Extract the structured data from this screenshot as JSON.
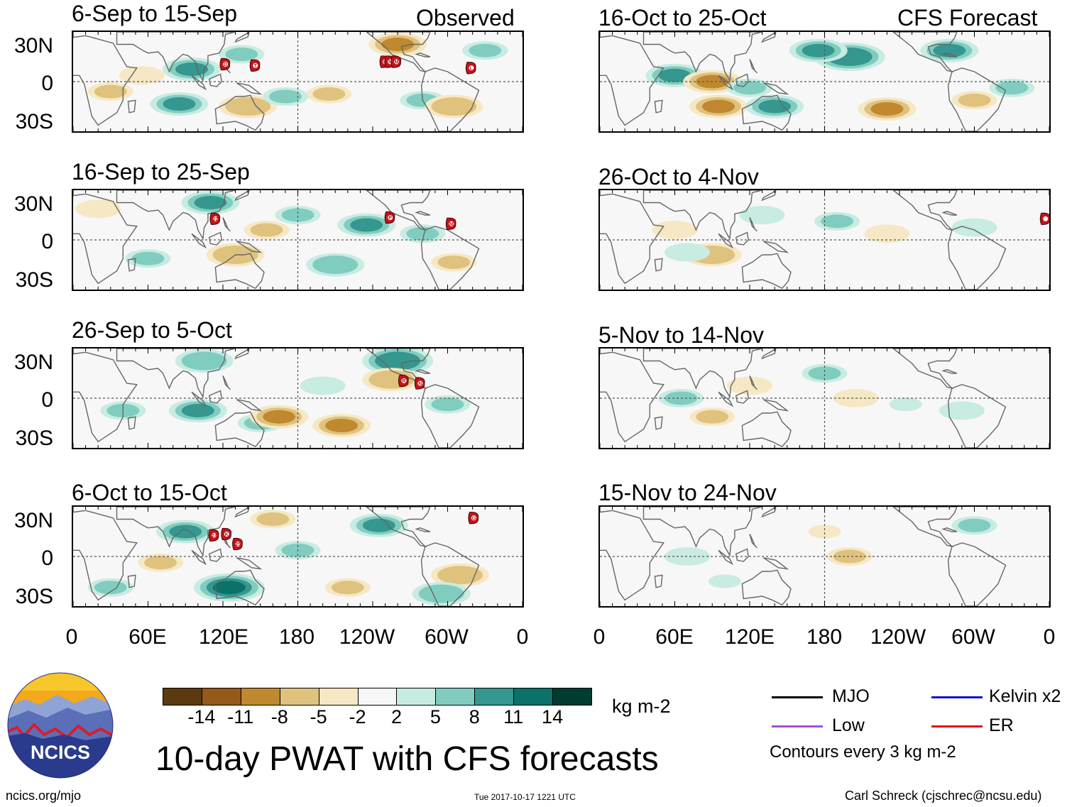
{
  "chart_data": {
    "type": "heatmap",
    "title": "10-day PWAT with CFS forecasts",
    "column_tags": [
      "Observed",
      "CFS Forecast"
    ],
    "panels": [
      {
        "label": "6-Sep to 15-Sep",
        "column": "Observed",
        "storms": [
          {
            "id": "D",
            "lon": 122,
            "lat": 14
          },
          {
            "id": "T",
            "lon": 146,
            "lat": 13
          },
          {
            "id": "O",
            "lon": 250,
            "lat": 16
          },
          {
            "id": "N",
            "lon": 254,
            "lat": 16
          },
          {
            "id": "M",
            "lon": 259,
            "lat": 16
          },
          {
            "id": "L",
            "lon": 319,
            "lat": 11
          }
        ]
      },
      {
        "label": "16-Sep to 25-Sep",
        "column": "Observed",
        "storms": [
          {
            "id": "22",
            "lon": 114,
            "lat": 17
          },
          {
            "id": "P",
            "lon": 254,
            "lat": 18
          },
          {
            "id": "M",
            "lon": 303,
            "lat": 13
          }
        ]
      },
      {
        "label": "26-Sep to 5-Oct",
        "column": "Observed",
        "storms": [
          {
            "id": "R",
            "lon": 265,
            "lat": 14
          },
          {
            "id": "N",
            "lon": 278,
            "lat": 12
          }
        ]
      },
      {
        "label": "6-Oct to 15-Oct",
        "column": "Observed",
        "storms": [
          {
            "id": "23",
            "lon": 113,
            "lat": 17
          },
          {
            "id": "K",
            "lon": 123,
            "lat": 18
          },
          {
            "id": "25",
            "lon": 132,
            "lat": 10
          },
          {
            "id": "O",
            "lon": 321,
            "lat": 31
          }
        ]
      },
      {
        "label": "16-Oct to 25-Oct",
        "column": "CFS Forecast",
        "storms": []
      },
      {
        "label": "26-Oct to 4-Nov",
        "column": "CFS Forecast",
        "storms": [
          {
            "id": "",
            "lon": 357,
            "lat": 17
          }
        ]
      },
      {
        "label": "5-Nov to 14-Nov",
        "column": "CFS Forecast",
        "storms": []
      },
      {
        "label": "15-Nov to 24-Nov",
        "column": "CFS Forecast",
        "storms": []
      }
    ],
    "anomalies": [
      [
        {
          "lon": 85,
          "lat": -18,
          "v": 9
        },
        {
          "lon": 95,
          "lat": 10,
          "v": 8
        },
        {
          "lon": 135,
          "lat": 22,
          "v": 6
        },
        {
          "lon": 30,
          "lat": -8,
          "v": -6
        },
        {
          "lon": 140,
          "lat": -20,
          "v": -7
        },
        {
          "lon": 205,
          "lat": -10,
          "v": -5
        },
        {
          "lon": 280,
          "lat": -15,
          "v": 6
        },
        {
          "lon": 305,
          "lat": -20,
          "v": -7
        },
        {
          "lon": 260,
          "lat": 30,
          "v": -8
        },
        {
          "lon": 170,
          "lat": -12,
          "v": 6
        },
        {
          "lon": 330,
          "lat": 25,
          "v": 5
        },
        {
          "lon": 55,
          "lat": 5,
          "v": -4
        }
      ],
      [
        {
          "lon": 110,
          "lat": 30,
          "v": 8
        },
        {
          "lon": 130,
          "lat": -12,
          "v": -7
        },
        {
          "lon": 210,
          "lat": -20,
          "v": 7
        },
        {
          "lon": 235,
          "lat": 12,
          "v": 8
        },
        {
          "lon": 60,
          "lat": -15,
          "v": 5
        },
        {
          "lon": 305,
          "lat": -18,
          "v": -6
        },
        {
          "lon": 180,
          "lat": 20,
          "v": 5
        },
        {
          "lon": 280,
          "lat": 5,
          "v": 5
        },
        {
          "lon": 20,
          "lat": 25,
          "v": -4
        },
        {
          "lon": 155,
          "lat": 8,
          "v": -5
        }
      ],
      [
        {
          "lon": 100,
          "lat": -10,
          "v": 9
        },
        {
          "lon": 150,
          "lat": -20,
          "v": 6
        },
        {
          "lon": 165,
          "lat": -15,
          "v": -9
        },
        {
          "lon": 215,
          "lat": -22,
          "v": -9
        },
        {
          "lon": 260,
          "lat": 30,
          "v": 10
        },
        {
          "lon": 255,
          "lat": 15,
          "v": -7
        },
        {
          "lon": 105,
          "lat": 30,
          "v": 7
        },
        {
          "lon": 40,
          "lat": -10,
          "v": 5
        },
        {
          "lon": 300,
          "lat": -5,
          "v": 5
        },
        {
          "lon": 200,
          "lat": 10,
          "v": 4
        }
      ],
      [
        {
          "lon": 90,
          "lat": 20,
          "v": 9
        },
        {
          "lon": 125,
          "lat": -25,
          "v": 11
        },
        {
          "lon": 70,
          "lat": -5,
          "v": -6
        },
        {
          "lon": 220,
          "lat": -25,
          "v": -6
        },
        {
          "lon": 245,
          "lat": 25,
          "v": 8
        },
        {
          "lon": 310,
          "lat": -15,
          "v": -7
        },
        {
          "lon": 295,
          "lat": -30,
          "v": 7
        },
        {
          "lon": 160,
          "lat": 30,
          "v": -5
        },
        {
          "lon": 180,
          "lat": 5,
          "v": 6
        },
        {
          "lon": 30,
          "lat": -25,
          "v": 5
        }
      ],
      [
        {
          "lon": 60,
          "lat": 5,
          "v": 8
        },
        {
          "lon": 90,
          "lat": 0,
          "v": -9
        },
        {
          "lon": 95,
          "lat": -20,
          "v": -8
        },
        {
          "lon": 140,
          "lat": -20,
          "v": 9
        },
        {
          "lon": 200,
          "lat": 20,
          "v": 10
        },
        {
          "lon": 230,
          "lat": -22,
          "v": -9
        },
        {
          "lon": 280,
          "lat": 25,
          "v": 9
        },
        {
          "lon": 300,
          "lat": -15,
          "v": -6
        },
        {
          "lon": 175,
          "lat": 25,
          "v": 8
        },
        {
          "lon": 120,
          "lat": -5,
          "v": 5
        },
        {
          "lon": 330,
          "lat": -5,
          "v": 5
        }
      ],
      [
        {
          "lon": 90,
          "lat": -12,
          "v": -7
        },
        {
          "lon": 190,
          "lat": 15,
          "v": 5
        },
        {
          "lon": 70,
          "lat": -10,
          "v": 4
        },
        {
          "lon": 230,
          "lat": 5,
          "v": -4
        },
        {
          "lon": 60,
          "lat": 8,
          "v": -4
        },
        {
          "lon": 300,
          "lat": 10,
          "v": 4
        },
        {
          "lon": 130,
          "lat": 20,
          "v": 4
        }
      ],
      [
        {
          "lon": 65,
          "lat": 0,
          "v": 6
        },
        {
          "lon": 90,
          "lat": -15,
          "v": -6
        },
        {
          "lon": 180,
          "lat": 20,
          "v": 6
        },
        {
          "lon": 205,
          "lat": 0,
          "v": -4
        },
        {
          "lon": 120,
          "lat": 10,
          "v": -4
        },
        {
          "lon": 290,
          "lat": -10,
          "v": 4
        },
        {
          "lon": 245,
          "lat": -5,
          "v": 3
        }
      ],
      [
        {
          "lon": 70,
          "lat": 0,
          "v": 4
        },
        {
          "lon": 200,
          "lat": 0,
          "v": -5
        },
        {
          "lon": 300,
          "lat": 25,
          "v": 5
        },
        {
          "lon": 180,
          "lat": 20,
          "v": -3
        },
        {
          "lon": 100,
          "lat": -20,
          "v": 3
        }
      ]
    ],
    "y_ticks": [
      "30N",
      "0",
      "30S"
    ],
    "x_ticks": [
      "0",
      "60E",
      "120E",
      "180",
      "120W",
      "60W",
      "0"
    ],
    "colorbar": {
      "ticks": [
        "-14",
        "-11",
        "-8",
        "-5",
        "-2",
        "2",
        "5",
        "8",
        "11",
        "14"
      ],
      "colors": [
        "#5c3a0f",
        "#95591a",
        "#c0892f",
        "#dfc27e",
        "#f6e8c4",
        "#f7f7f7",
        "#c8ebe2",
        "#80cdc0",
        "#35978f",
        "#0a7268",
        "#013c30"
      ],
      "units": "kg m-2"
    }
  },
  "legend": {
    "items": [
      {
        "label": "MJO",
        "color": "#000000"
      },
      {
        "label": "Kelvin x2",
        "color": "#1010d0"
      },
      {
        "label": "Low",
        "color": "#a050e0"
      },
      {
        "label": "ER",
        "color": "#e01010"
      }
    ],
    "note": "Contours every 3 kg m-2"
  },
  "logo": {
    "text": "NCICS"
  },
  "footer": {
    "url": "ncics.org/mjo",
    "timestamp": "Tue 2017-10-17 1221 UTC",
    "credit": "Carl Schreck (cjschrec@ncsu.edu)"
  },
  "colors": {
    "land_outline": "#666666",
    "map_bg": "#f7f7f7"
  }
}
